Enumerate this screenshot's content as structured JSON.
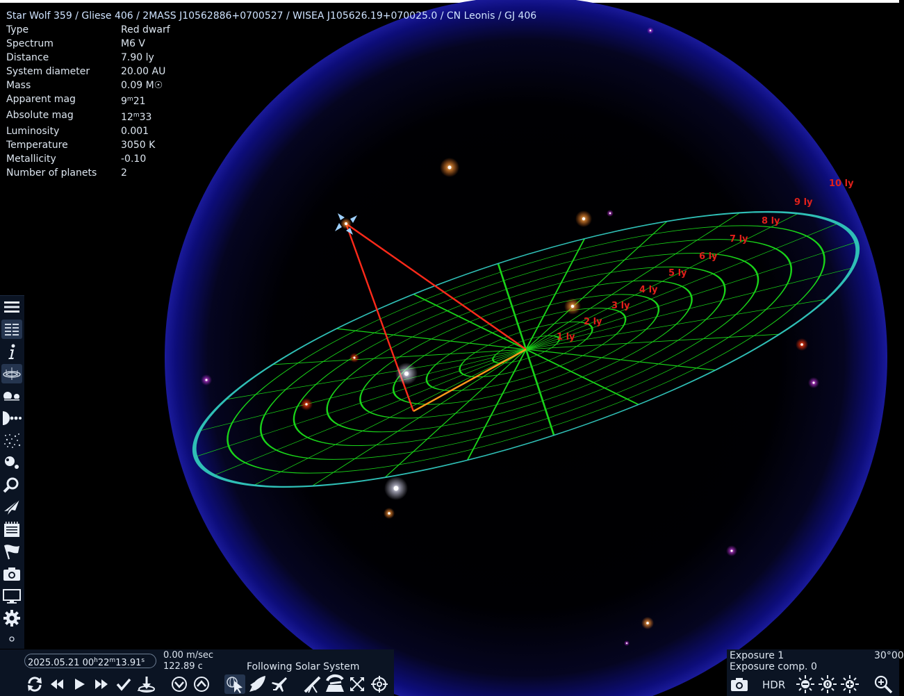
{
  "star_info": {
    "title": "Star  Wolf 359 / Gliese 406 / 2MASS J10562886+0700527 / WISEA J105626.19+070025.0 / CN Leonis / GJ 406",
    "rows": [
      {
        "key": "Type",
        "value": "Red dwarf"
      },
      {
        "key": "Spectrum",
        "value": "M6 V"
      },
      {
        "key": "Distance",
        "value": "7.90 ly"
      },
      {
        "key": "System diameter",
        "value": "20.00 AU"
      },
      {
        "key": "Mass",
        "value": "0.09 M☉"
      },
      {
        "key": "Apparent mag",
        "value_main": "9",
        "value_sup": "m",
        "value_rest": "21"
      },
      {
        "key": "Absolute mag",
        "value_main": "12",
        "value_sup": "m",
        "value_rest": "33"
      },
      {
        "key": "Luminosity",
        "value": "0.001"
      },
      {
        "key": "Temperature",
        "value": "3050 K"
      },
      {
        "key": "Metallicity",
        "value": "-0.10"
      },
      {
        "key": "Number of planets",
        "value": "2"
      }
    ]
  },
  "grid_labels": [
    "1 ly",
    "2 ly",
    "3 ly",
    "4 ly",
    "5 ly",
    "6 ly",
    "7 ly",
    "8 ly",
    "9 ly",
    "10 ly"
  ],
  "time": {
    "date": "2025.05.21 00",
    "h": "h",
    "min": "22",
    "m": "m",
    "sec": "13.91",
    "s": "s"
  },
  "speed": {
    "line1": "0.00 m/sec",
    "line2": "122.89 c"
  },
  "follow_status": "Following Solar System",
  "exposure": {
    "line1": "Exposure 1",
    "line2": "Exposure comp. 0",
    "hdr": "HDR",
    "fov": "30°00"
  },
  "left_toolbar": [
    "menu-icon",
    "object-list-icon",
    "info-icon",
    "planetarium-icon",
    "binary-star-icon",
    "planets-icon",
    "stars-icon",
    "galaxy-icon",
    "search-icon",
    "spacecraft-icon",
    "journal-icon",
    "flag-icon",
    "camera-icon",
    "display-icon",
    "settings-icon",
    "small-dot-icon",
    "person-icon"
  ],
  "colors": {
    "grid": "#19d419",
    "rim": "#2fbfb6",
    "sphere": "#0a0a6e",
    "line": "#ff2a1a",
    "label": "#e0201a",
    "panel": "#0b1423"
  }
}
